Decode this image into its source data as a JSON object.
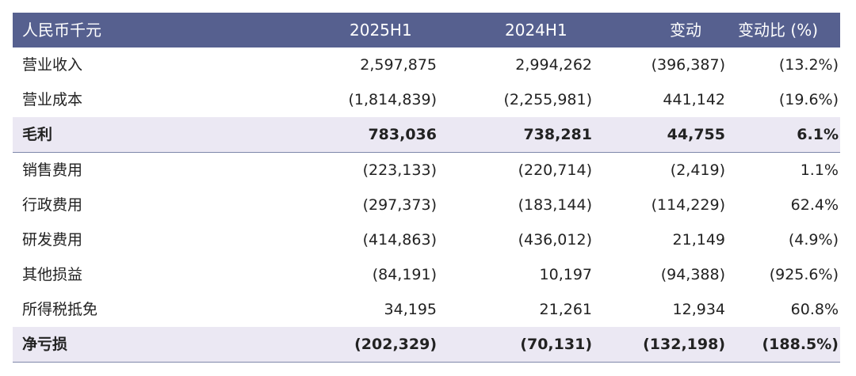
{
  "table": {
    "header": [
      "人民币千元",
      "2025H1",
      "2024H1",
      "变动",
      "变动比 (%)"
    ],
    "rows": [
      {
        "label": "营业收入",
        "h2025": "2,597,875",
        "h2024": "2,994,262",
        "change": "(396,387)",
        "pct": "(13.2%)"
      },
      {
        "label": "营业成本",
        "h2025": "(1,814,839)",
        "h2024": "(2,255,981)",
        "change": "441,142",
        "pct": "(19.6%)"
      },
      {
        "label": "毛利",
        "h2025": "783,036",
        "h2024": "738,281",
        "change": "44,755",
        "pct": "6.1%"
      },
      {
        "label": "销售费用",
        "h2025": "(223,133)",
        "h2024": "(220,714)",
        "change": "(2,419)",
        "pct": "1.1%"
      },
      {
        "label": "行政费用",
        "h2025": "(297,373)",
        "h2024": "(183,144)",
        "change": "(114,229)",
        "pct": "62.4%"
      },
      {
        "label": "研发费用",
        "h2025": "(414,863)",
        "h2024": "(436,012)",
        "change": "21,149",
        "pct": "(4.9%)"
      },
      {
        "label": "其他损益",
        "h2025": "(84,191)",
        "h2024": "10,197",
        "change": "(94,388)",
        "pct": "(925.6%)"
      },
      {
        "label": "所得税抵免",
        "h2025": "34,195",
        "h2024": "21,261",
        "change": "12,934",
        "pct": "60.8%"
      },
      {
        "label": "净亏损",
        "h2025": "(202,329)",
        "h2024": "(70,131)",
        "change": "(132,198)",
        "pct": "(188.5%)"
      }
    ]
  },
  "colors": {
    "header_bg": "#56608f",
    "highlight_bg": "#ebe8f3"
  }
}
